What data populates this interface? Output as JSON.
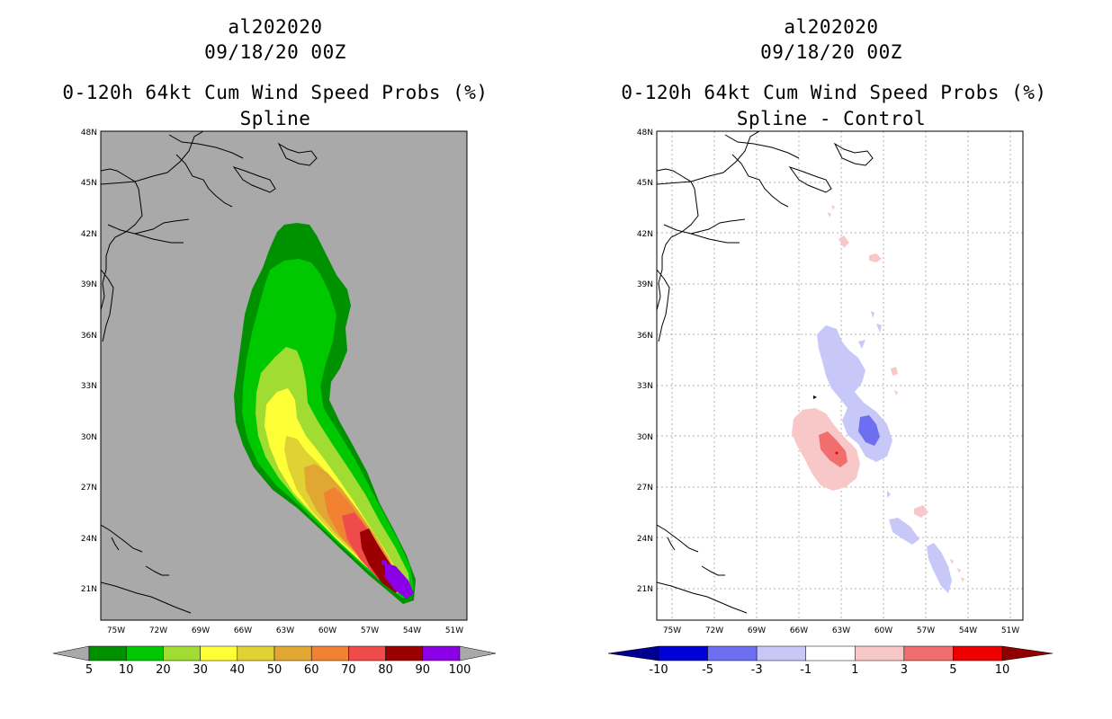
{
  "panels": [
    {
      "storm": "al202020",
      "datetime": "09/18/20 00Z",
      "product": "0-120h 64kt Cum Wind Speed Probs (%)",
      "subtitle": "Spline",
      "background": "#a9a9a9",
      "colorbar": {
        "labels": [
          "5",
          "10",
          "20",
          "30",
          "40",
          "50",
          "60",
          "70",
          "80",
          "90",
          "100"
        ],
        "colors": [
          "#009100",
          "#00c800",
          "#a0dc32",
          "#ffff37",
          "#e0d232",
          "#e0a832",
          "#f08232",
          "#f04b4b",
          "#9a0000",
          "#8c00e8"
        ],
        "end_colors": [
          "#a9a9a9",
          "#a9a9a9"
        ]
      }
    },
    {
      "storm": "al202020",
      "datetime": "09/18/20 00Z",
      "product": "0-120h 64kt Cum Wind Speed Probs (%)",
      "subtitle": "Spline - Control",
      "background": "#ffffff",
      "colorbar": {
        "labels": [
          "-10",
          "-5",
          "-3",
          "-1",
          "1",
          "3",
          "5",
          "10"
        ],
        "colors": [
          "#0000d8",
          "#6e6ef0",
          "#c8c8f8",
          "#ffffff",
          "#f8c8c8",
          "#f06e6e",
          "#ee0000"
        ],
        "end_colors": [
          "#000090",
          "#900000"
        ]
      }
    }
  ],
  "lat_labels": [
    "48N",
    "45N",
    "42N",
    "39N",
    "36N",
    "33N",
    "30N",
    "27N",
    "24N",
    "21N"
  ],
  "lon_labels": [
    "75W",
    "72W",
    "69W",
    "66W",
    "63W",
    "60W",
    "57W",
    "54W",
    "51W"
  ],
  "chart_data": {
    "type": "map",
    "region": {
      "lon_range": [
        -76.5,
        -50.5
      ],
      "lat_range": [
        19.0,
        48.0
      ]
    },
    "track_peak": {
      "lon": -54.5,
      "lat": 20.8
    }
  }
}
